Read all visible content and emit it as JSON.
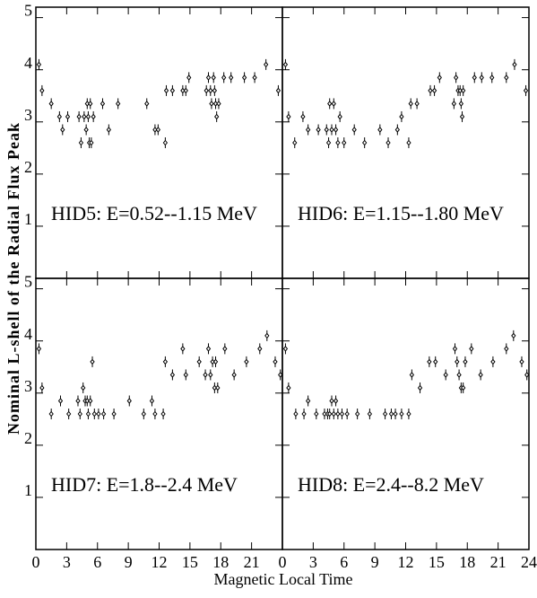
{
  "figure": {
    "xlabel": "Magnetic Local Time",
    "ylabel": "Nominal L-shell of the Radial Flux Peak"
  },
  "chart_data": [
    {
      "type": "scatter",
      "title": "HID5: E=0.52--1.15 MeV",
      "color": "#000000",
      "xlim": [
        0,
        24
      ],
      "ylim": [
        0,
        5.2
      ],
      "xticks": [
        0,
        3,
        6,
        9,
        12,
        15,
        18,
        21,
        24
      ],
      "yticks": [
        1,
        2,
        3,
        4,
        5
      ],
      "x": [
        0.3,
        0.6,
        1.5,
        2.3,
        2.6,
        3.1,
        4.2,
        4.4,
        4.7,
        4.9,
        5.0,
        5.1,
        5.2,
        5.3,
        5.4,
        5.6,
        6.5,
        7.1,
        8.0,
        10.8,
        11.6,
        11.9,
        12.6,
        12.7,
        13.3,
        14.3,
        14.6,
        14.9,
        16.6,
        16.8,
        17.0,
        17.1,
        17.3,
        17.4,
        17.5,
        17.6,
        17.8,
        18.3,
        19.0,
        20.3,
        21.3,
        22.4,
        23.6
      ],
      "y": [
        4.1,
        3.6,
        3.35,
        3.1,
        2.85,
        3.1,
        3.1,
        2.6,
        3.1,
        2.85,
        3.35,
        3.1,
        2.6,
        3.35,
        2.6,
        3.1,
        3.35,
        2.85,
        3.35,
        3.35,
        2.85,
        2.85,
        2.6,
        3.6,
        3.6,
        3.6,
        3.6,
        3.85,
        3.6,
        3.85,
        3.6,
        3.35,
        3.85,
        3.6,
        3.35,
        3.1,
        3.35,
        3.85,
        3.85,
        3.85,
        3.85,
        4.1,
        3.6
      ]
    },
    {
      "type": "scatter",
      "title": "HID6: E=1.15--1.80 MeV",
      "color": "#000000",
      "xlim": [
        0,
        24
      ],
      "ylim": [
        0,
        5.2
      ],
      "xticks": [
        0,
        3,
        6,
        9,
        12,
        15,
        18,
        21,
        24
      ],
      "yticks": [
        1,
        2,
        3,
        4,
        5
      ],
      "x": [
        0.3,
        0.6,
        1.2,
        2.0,
        2.5,
        3.5,
        4.3,
        4.5,
        4.6,
        4.8,
        5.0,
        5.2,
        5.4,
        5.6,
        6.0,
        7.0,
        8.0,
        9.5,
        10.3,
        11.2,
        11.6,
        12.3,
        12.5,
        13.1,
        14.4,
        14.8,
        15.3,
        16.7,
        16.9,
        17.1,
        17.3,
        17.4,
        17.5,
        17.6,
        18.7,
        19.4,
        20.4,
        21.8,
        22.6,
        23.7
      ],
      "y": [
        4.1,
        3.1,
        2.6,
        3.1,
        2.85,
        2.85,
        2.85,
        2.6,
        3.35,
        2.85,
        3.35,
        2.85,
        2.6,
        3.1,
        2.6,
        2.85,
        2.6,
        2.85,
        2.6,
        2.85,
        3.1,
        2.6,
        3.35,
        3.35,
        3.6,
        3.6,
        3.85,
        3.35,
        3.85,
        3.6,
        3.6,
        3.35,
        3.1,
        3.6,
        3.85,
        3.85,
        3.85,
        3.85,
        4.1,
        3.6
      ]
    },
    {
      "type": "scatter",
      "title": "HID7: E=1.8--2.4 MeV",
      "color": "#000000",
      "xlim": [
        0,
        24
      ],
      "ylim": [
        0,
        5.2
      ],
      "xticks": [
        0,
        3,
        6,
        9,
        12,
        15,
        18,
        21,
        24
      ],
      "yticks": [
        1,
        2,
        3,
        4,
        5
      ],
      "x": [
        0.3,
        0.6,
        1.5,
        2.4,
        3.2,
        4.1,
        4.3,
        4.6,
        4.8,
        5.0,
        5.1,
        5.3,
        5.5,
        5.7,
        6.1,
        6.6,
        7.6,
        9.1,
        10.5,
        11.3,
        11.6,
        12.4,
        12.6,
        13.3,
        14.3,
        14.6,
        15.9,
        16.5,
        16.8,
        17.0,
        17.2,
        17.4,
        17.5,
        17.7,
        18.4,
        19.3,
        20.5,
        21.8,
        22.5,
        23.3,
        23.8
      ],
      "y": [
        3.85,
        3.1,
        2.6,
        2.85,
        2.6,
        2.85,
        2.6,
        3.1,
        2.85,
        2.85,
        2.6,
        2.85,
        3.6,
        2.6,
        2.6,
        2.6,
        2.6,
        2.85,
        2.6,
        2.85,
        2.6,
        2.6,
        3.6,
        3.35,
        3.85,
        3.35,
        3.6,
        3.35,
        3.85,
        3.35,
        3.6,
        3.1,
        3.6,
        3.1,
        3.85,
        3.35,
        3.6,
        3.85,
        4.1,
        3.6,
        3.35
      ]
    },
    {
      "type": "scatter",
      "title": "HID8: E=2.4--8.2 MeV",
      "color": "#000000",
      "xlim": [
        0,
        24
      ],
      "ylim": [
        0,
        5.2
      ],
      "xticks": [
        0,
        3,
        6,
        9,
        12,
        15,
        18,
        21,
        24
      ],
      "yticks": [
        1,
        2,
        3,
        4,
        5
      ],
      "x": [
        0.3,
        0.6,
        1.3,
        2.1,
        2.5,
        3.3,
        4.1,
        4.4,
        4.6,
        4.8,
        5.0,
        5.2,
        5.4,
        5.8,
        6.3,
        7.3,
        8.5,
        10.0,
        10.6,
        11.0,
        11.6,
        12.3,
        12.6,
        13.4,
        14.3,
        14.9,
        15.9,
        16.8,
        17.0,
        17.2,
        17.4,
        17.6,
        17.8,
        18.4,
        19.3,
        20.5,
        21.8,
        22.5,
        23.3,
        23.8
      ],
      "y": [
        3.85,
        3.1,
        2.6,
        2.6,
        2.85,
        2.6,
        2.6,
        2.6,
        2.6,
        2.85,
        2.6,
        2.85,
        2.6,
        2.6,
        2.6,
        2.6,
        2.6,
        2.6,
        2.6,
        2.6,
        2.6,
        2.6,
        3.35,
        3.1,
        3.6,
        3.6,
        3.35,
        3.85,
        3.6,
        3.35,
        3.1,
        3.1,
        3.6,
        3.85,
        3.35,
        3.6,
        3.85,
        4.1,
        3.6,
        3.35
      ]
    }
  ]
}
